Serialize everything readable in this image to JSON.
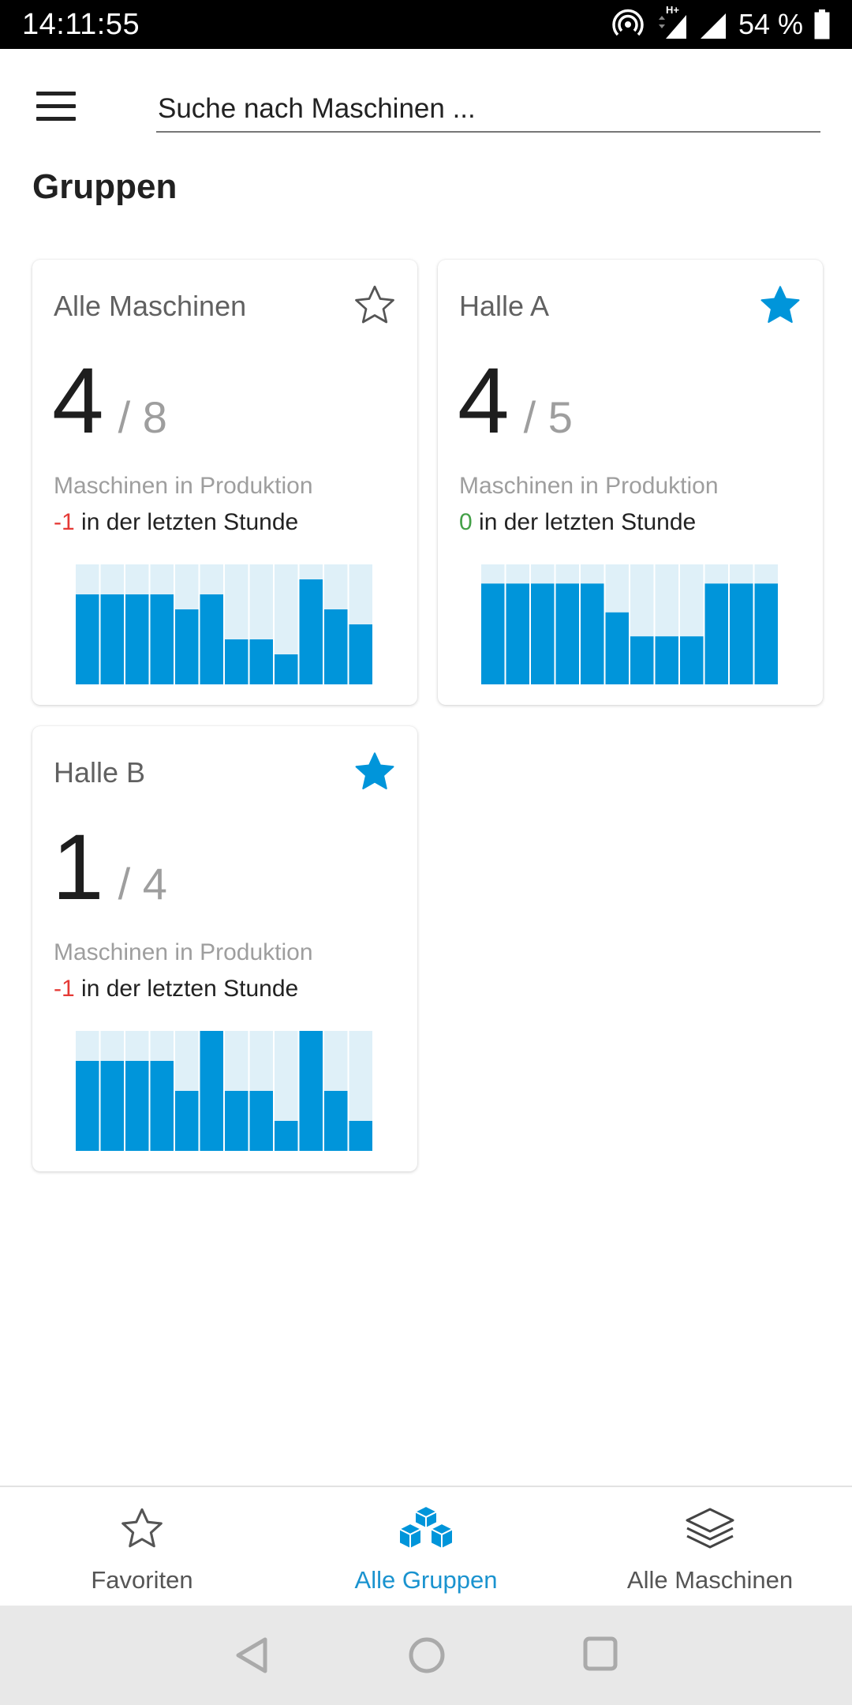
{
  "status_bar": {
    "time": "14:11:55",
    "network_label": "H+",
    "battery": "54 %"
  },
  "header": {
    "search_placeholder": "Suche nach Maschinen ..."
  },
  "section_title": "Gruppen",
  "groups": [
    {
      "name": "Alle Maschinen",
      "favorite": false,
      "running": "4",
      "total": "/ 8",
      "label": "Maschinen in Produktion",
      "delta": "-1",
      "delta_text": " in der letzten Stunde",
      "history_max": 8,
      "history": [
        6,
        6,
        6,
        6,
        5,
        6,
        3,
        3,
        2,
        7,
        5,
        4
      ]
    },
    {
      "name": "Halle A",
      "favorite": true,
      "running": "4",
      "total": "/ 5",
      "label": "Maschinen in Produktion",
      "delta": "0",
      "delta_text": " in der letzten Stunde",
      "history_max": 5,
      "history": [
        4.2,
        4.2,
        4.2,
        4.2,
        4.2,
        3,
        2,
        2,
        2,
        4.2,
        4.2,
        4.2
      ]
    },
    {
      "name": "Halle B",
      "favorite": true,
      "running": "1",
      "total": "/ 4",
      "label": "Maschinen in Produktion",
      "delta": "-1",
      "delta_text": " in der letzten Stunde",
      "history_max": 4,
      "history": [
        3,
        3,
        3,
        3,
        2,
        4,
        2,
        2,
        1,
        4,
        2,
        1
      ]
    }
  ],
  "bottom_nav": {
    "items": [
      {
        "label": "Favoriten",
        "icon": "star-outline-icon"
      },
      {
        "label": "Alle Gruppen",
        "icon": "cubes-icon",
        "active": true
      },
      {
        "label": "Alle Maschinen",
        "icon": "layers-icon"
      }
    ]
  },
  "colors": {
    "accent": "#0095da",
    "bar_background": "#dff0f8",
    "negative": "#e53935",
    "zero": "#43a047"
  }
}
